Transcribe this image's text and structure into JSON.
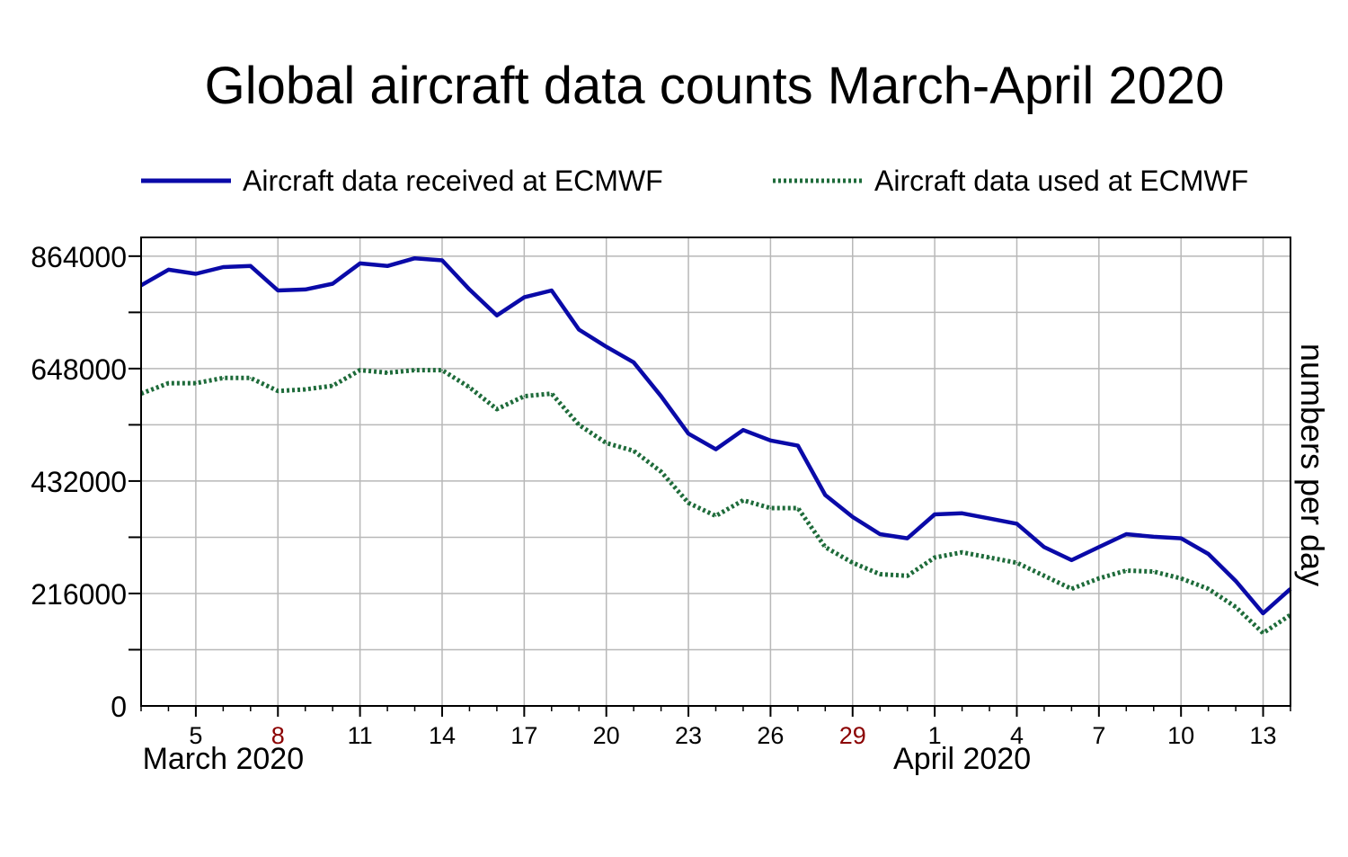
{
  "chart_data": {
    "type": "line",
    "title": "Global aircraft data counts March-April 2020",
    "ylabel": "numbers per day",
    "xlabel": "",
    "ylim": [
      0,
      900000
    ],
    "y_ticks": [
      0,
      216000,
      432000,
      648000,
      864000
    ],
    "y_tick_labels": [
      "0",
      "216000",
      "432000",
      "648000",
      "864000"
    ],
    "x_domain": [
      "2020-03-03",
      "2020-04-14"
    ],
    "x_ticks": [
      {
        "date": "2020-03-05",
        "label": "5",
        "color": "#000000"
      },
      {
        "date": "2020-03-08",
        "label": "8",
        "color": "#8b0000"
      },
      {
        "date": "2020-03-11",
        "label": "11",
        "color": "#000000"
      },
      {
        "date": "2020-03-14",
        "label": "14",
        "color": "#000000"
      },
      {
        "date": "2020-03-17",
        "label": "17",
        "color": "#000000"
      },
      {
        "date": "2020-03-20",
        "label": "20",
        "color": "#000000"
      },
      {
        "date": "2020-03-23",
        "label": "23",
        "color": "#000000"
      },
      {
        "date": "2020-03-26",
        "label": "26",
        "color": "#000000"
      },
      {
        "date": "2020-03-29",
        "label": "29",
        "color": "#8b0000"
      },
      {
        "date": "2020-04-01",
        "label": "1",
        "color": "#000000"
      },
      {
        "date": "2020-04-04",
        "label": "4",
        "color": "#000000"
      },
      {
        "date": "2020-04-07",
        "label": "7",
        "color": "#000000"
      },
      {
        "date": "2020-04-10",
        "label": "10",
        "color": "#000000"
      },
      {
        "date": "2020-04-13",
        "label": "13",
        "color": "#000000"
      }
    ],
    "month_labels": [
      {
        "date": "2020-03-06",
        "label": "March 2020"
      },
      {
        "date": "2020-04-02",
        "label": "April 2020"
      }
    ],
    "x": [
      "2020-03-03",
      "2020-03-04",
      "2020-03-05",
      "2020-03-06",
      "2020-03-07",
      "2020-03-08",
      "2020-03-09",
      "2020-03-10",
      "2020-03-11",
      "2020-03-12",
      "2020-03-13",
      "2020-03-14",
      "2020-03-15",
      "2020-03-16",
      "2020-03-17",
      "2020-03-18",
      "2020-03-19",
      "2020-03-20",
      "2020-03-21",
      "2020-03-22",
      "2020-03-23",
      "2020-03-24",
      "2020-03-25",
      "2020-03-26",
      "2020-03-27",
      "2020-03-28",
      "2020-03-29",
      "2020-03-30",
      "2020-03-31",
      "2020-04-01",
      "2020-04-02",
      "2020-04-03",
      "2020-04-04",
      "2020-04-05",
      "2020-04-06",
      "2020-04-07",
      "2020-04-08",
      "2020-04-09",
      "2020-04-10",
      "2020-04-11",
      "2020-04-12",
      "2020-04-13",
      "2020-04-14"
    ],
    "series": [
      {
        "name": "Aircraft data received at ECMWF",
        "color": "#0a0aa8",
        "style": "solid",
        "values": [
          808000,
          838000,
          830000,
          843000,
          845000,
          798000,
          800000,
          811000,
          850000,
          845000,
          860000,
          856000,
          800000,
          750000,
          785000,
          798000,
          723000,
          690000,
          660000,
          595000,
          523000,
          493000,
          530000,
          510000,
          500000,
          405000,
          363000,
          330000,
          322000,
          368000,
          370000,
          360000,
          350000,
          305000,
          280000,
          305000,
          330000,
          325000,
          322000,
          292000,
          240000,
          178000,
          225000
        ]
      },
      {
        "name": "Aircraft data used at ECMWF",
        "color": "#1e6b3a",
        "style": "dotted",
        "values": [
          600000,
          620000,
          620000,
          630000,
          630000,
          605000,
          608000,
          615000,
          645000,
          640000,
          645000,
          645000,
          612000,
          570000,
          595000,
          600000,
          540000,
          505000,
          490000,
          450000,
          390000,
          365000,
          395000,
          380000,
          380000,
          305000,
          275000,
          253000,
          250000,
          285000,
          295000,
          285000,
          275000,
          250000,
          225000,
          245000,
          260000,
          258000,
          245000,
          225000,
          190000,
          140000,
          175000
        ]
      }
    ],
    "grid": true,
    "legend": "top"
  }
}
